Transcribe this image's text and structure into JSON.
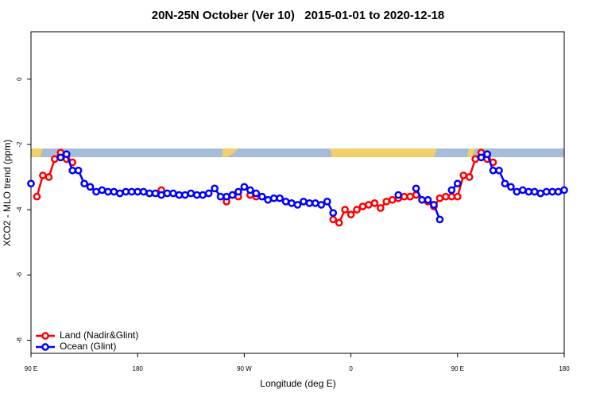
{
  "chart_data": {
    "type": "line",
    "title": "20N-25N October (Ver 10)   2015-01-01 to 2020-12-18",
    "xlabel": "Longitude (deg E)",
    "ylabel": "XCO2 - MLO trend (ppm)",
    "x": [
      90,
      95,
      100,
      105,
      110,
      115,
      120,
      125,
      130,
      135,
      140,
      145,
      150,
      155,
      160,
      165,
      170,
      175,
      180,
      185,
      190,
      195,
      200,
      205,
      210,
      215,
      220,
      225,
      230,
      235,
      240,
      245,
      250,
      255,
      260,
      265,
      270,
      275,
      280,
      285,
      290,
      295,
      300,
      305,
      310,
      315,
      320,
      325,
      330,
      335,
      340,
      345,
      350,
      355,
      360,
      365,
      370,
      375,
      380,
      385,
      390,
      395,
      400,
      405,
      410,
      415,
      420,
      425,
      430,
      435,
      440,
      445,
      450,
      455,
      460,
      465,
      470,
      475,
      480,
      485,
      490,
      495,
      500,
      505,
      510,
      515,
      520,
      525,
      530,
      535,
      540
    ],
    "series": [
      {
        "name": "Land (Nadir&Glint)",
        "color": "#ff0000",
        "values": [
          null,
          -3.6,
          -2.95,
          -3.0,
          -2.45,
          -2.25,
          -2.45,
          -2.55,
          null,
          null,
          null,
          null,
          null,
          null,
          null,
          null,
          null,
          null,
          null,
          null,
          null,
          null,
          -3.4,
          null,
          null,
          null,
          null,
          null,
          null,
          null,
          null,
          null,
          null,
          -3.75,
          -3.55,
          -3.6,
          null,
          -3.55,
          -3.6,
          null,
          null,
          null,
          null,
          null,
          null,
          null,
          null,
          null,
          null,
          null,
          null,
          -4.3,
          -4.4,
          -4.0,
          -4.15,
          -4.0,
          -3.9,
          -3.85,
          -3.8,
          -3.95,
          -3.75,
          -3.7,
          -3.65,
          -3.6,
          -3.6,
          -3.55,
          null,
          -3.75,
          -3.9,
          -3.65,
          -3.6,
          -3.6,
          -3.6,
          -2.95,
          -3.0,
          -2.45,
          -2.25,
          -2.45,
          -2.55,
          null,
          null,
          null,
          null,
          null,
          null,
          null,
          null,
          null,
          null,
          null,
          null
        ]
      },
      {
        "name": "Ocean (Glint)",
        "color": "#0000ff",
        "values": [
          -3.2,
          null,
          null,
          null,
          null,
          -2.4,
          -2.3,
          -2.8,
          -2.8,
          -3.2,
          -3.3,
          -3.45,
          -3.4,
          -3.45,
          -3.45,
          -3.5,
          -3.45,
          -3.45,
          -3.45,
          -3.45,
          -3.5,
          -3.5,
          -3.55,
          -3.5,
          -3.5,
          -3.55,
          -3.55,
          -3.5,
          -3.55,
          -3.55,
          -3.5,
          -3.35,
          -3.6,
          -3.6,
          -3.55,
          -3.45,
          -3.3,
          -3.4,
          -3.5,
          -3.6,
          -3.7,
          -3.65,
          -3.65,
          -3.75,
          -3.8,
          -3.85,
          -3.75,
          -3.8,
          -3.8,
          -3.85,
          -3.75,
          -4.1,
          null,
          null,
          null,
          null,
          null,
          null,
          null,
          null,
          null,
          null,
          -3.55,
          null,
          null,
          -3.35,
          -3.7,
          -3.7,
          -3.85,
          -4.3,
          null,
          -3.4,
          -3.2,
          null,
          null,
          null,
          -2.4,
          -2.3,
          -2.8,
          -2.8,
          -3.2,
          -3.3,
          -3.45,
          -3.4,
          -3.45,
          -3.45,
          -3.5,
          -3.45,
          -3.45,
          -3.45,
          -3.4
        ]
      }
    ],
    "xlim": [
      90,
      540
    ],
    "xticks": [
      {
        "value": 90,
        "label": "90 E"
      },
      180,
      {
        "value": 270,
        "label": "90 W"
      },
      {
        "value": 360,
        "label": "0"
      },
      {
        "value": 450,
        "label": "90 E"
      },
      {
        "value": 540,
        "label": "180"
      }
    ],
    "ylim": [
      -8.4,
      1.45
    ],
    "yticks": [
      0,
      -2,
      -4,
      -6,
      -8
    ],
    "legend": "bottom-left",
    "grid": false
  }
}
